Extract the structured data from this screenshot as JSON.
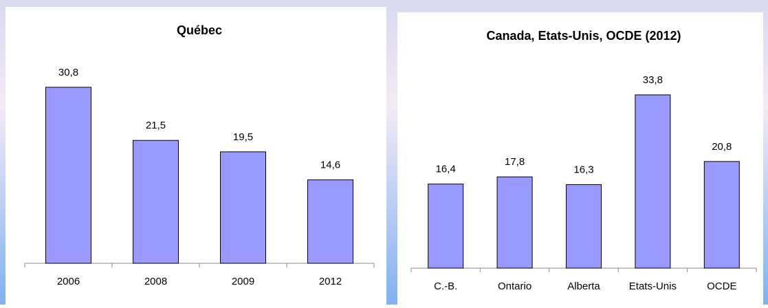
{
  "chart_data": [
    {
      "type": "bar",
      "title": "Québec",
      "categories": [
        "2006",
        "2008",
        "2009",
        "2012"
      ],
      "values": [
        30.8,
        21.5,
        19.5,
        14.6
      ],
      "value_labels": [
        "30,8",
        "21,5",
        "19,5",
        "14,6"
      ],
      "color": "#9999ff",
      "ylim": [
        0,
        35
      ]
    },
    {
      "type": "bar",
      "title": "Canada, Etats-Unis, OCDE (2012)",
      "categories": [
        "C.-B.",
        "Ontario",
        "Alberta",
        "Etats-Unis",
        "OCDE"
      ],
      "values": [
        16.4,
        17.8,
        16.3,
        33.8,
        20.8
      ],
      "value_labels": [
        "16,4",
        "17,8",
        "16,3",
        "33,8",
        "20,8"
      ],
      "color": "#9999ff",
      "ylim": [
        0,
        35
      ]
    }
  ]
}
